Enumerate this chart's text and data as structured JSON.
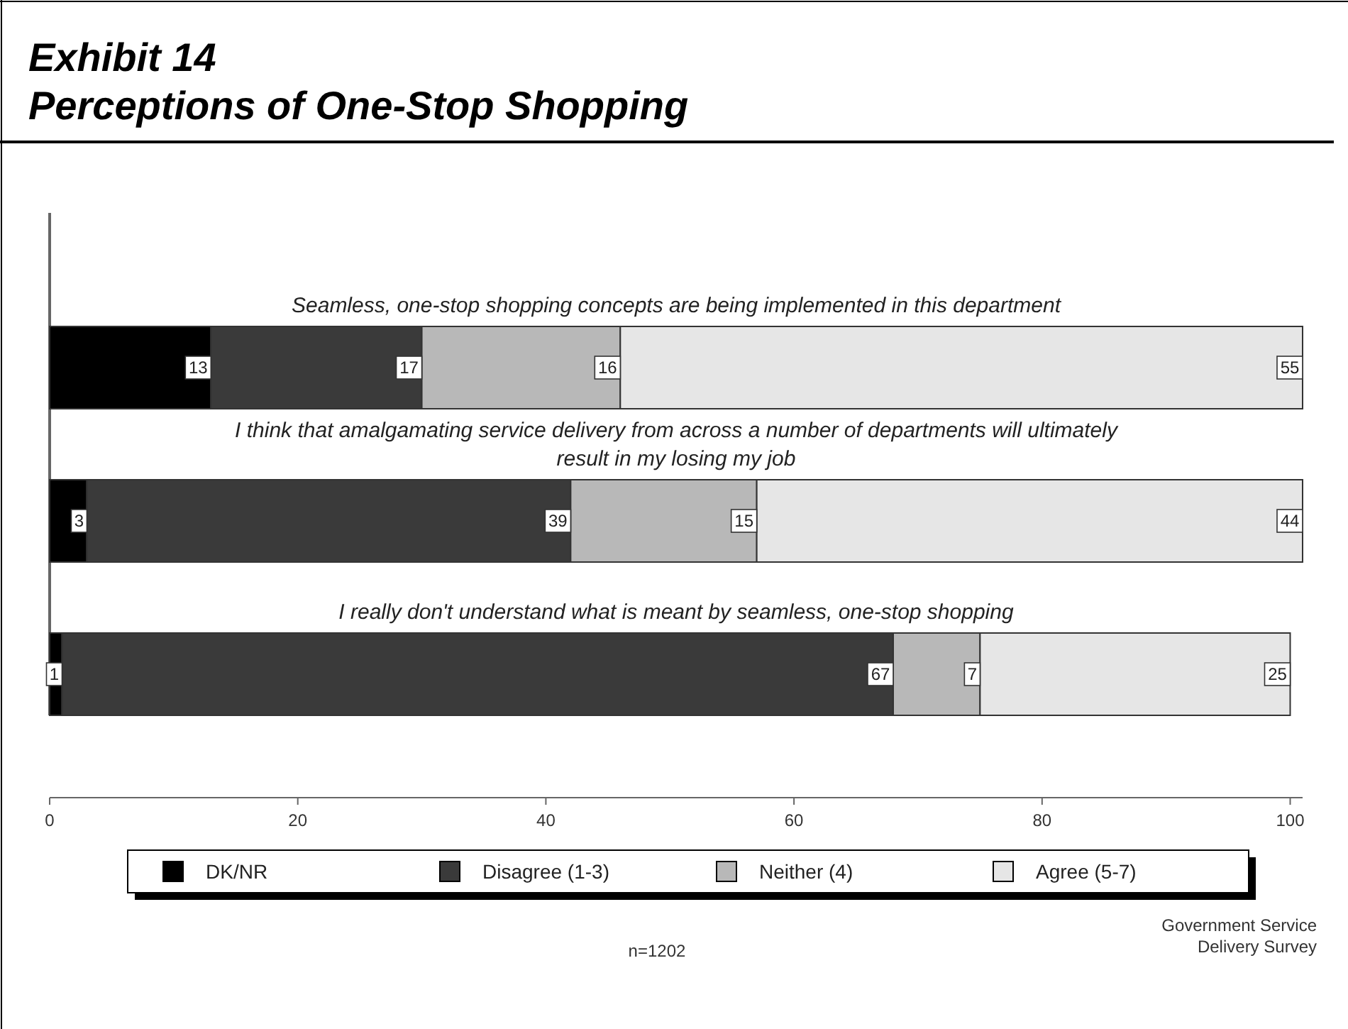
{
  "chart_data": {
    "type": "bar",
    "orientation": "horizontal",
    "stacked": true,
    "title": "Exhibit 14",
    "subtitle": "Perceptions of One-Stop Shopping",
    "categories": [
      "Seamless, one-stop shopping concepts are being implemented in this department",
      "I think that amalgamating service delivery from across a number of departments will ultimately result in my losing my job",
      "I really don't understand what is meant by seamless, one-stop shopping"
    ],
    "series": [
      {
        "name": "DK/NR",
        "color": "#000000",
        "values": [
          13,
          3,
          1
        ]
      },
      {
        "name": "Disagree (1-3)",
        "color": "#3a3a3a",
        "values": [
          17,
          39,
          67
        ]
      },
      {
        "name": "Neither (4)",
        "color": "#b8b8b8",
        "values": [
          16,
          15,
          7
        ]
      },
      {
        "name": "Agree (5-7)",
        "color": "#e6e6e6",
        "values": [
          55,
          44,
          25
        ]
      }
    ],
    "xlim": [
      0,
      101
    ],
    "xticks": [
      0,
      20,
      40,
      60,
      80,
      100
    ],
    "data_labels": true,
    "legend": "bottom",
    "grid": false,
    "annotations": [
      "n=1202",
      "Government Service Delivery Survey"
    ]
  }
}
